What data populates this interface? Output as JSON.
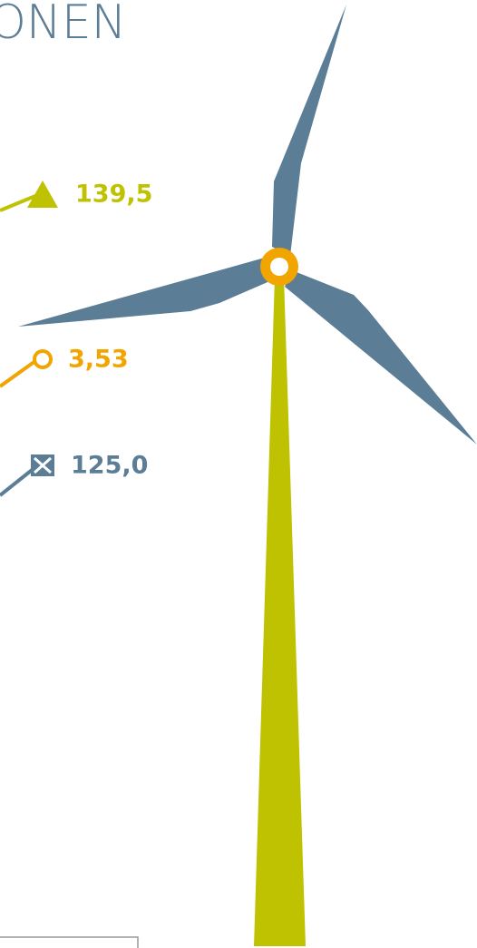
{
  "header": {
    "title": "ONEN"
  },
  "series_ends": [
    {
      "label": "139,5",
      "color": "#bfc200",
      "marker": "triangle"
    },
    {
      "label": "3,53",
      "color": "#f0a500",
      "marker": "circle"
    },
    {
      "label": "125,0",
      "color": "#5b7d95",
      "marker": "box-x"
    }
  ]
}
